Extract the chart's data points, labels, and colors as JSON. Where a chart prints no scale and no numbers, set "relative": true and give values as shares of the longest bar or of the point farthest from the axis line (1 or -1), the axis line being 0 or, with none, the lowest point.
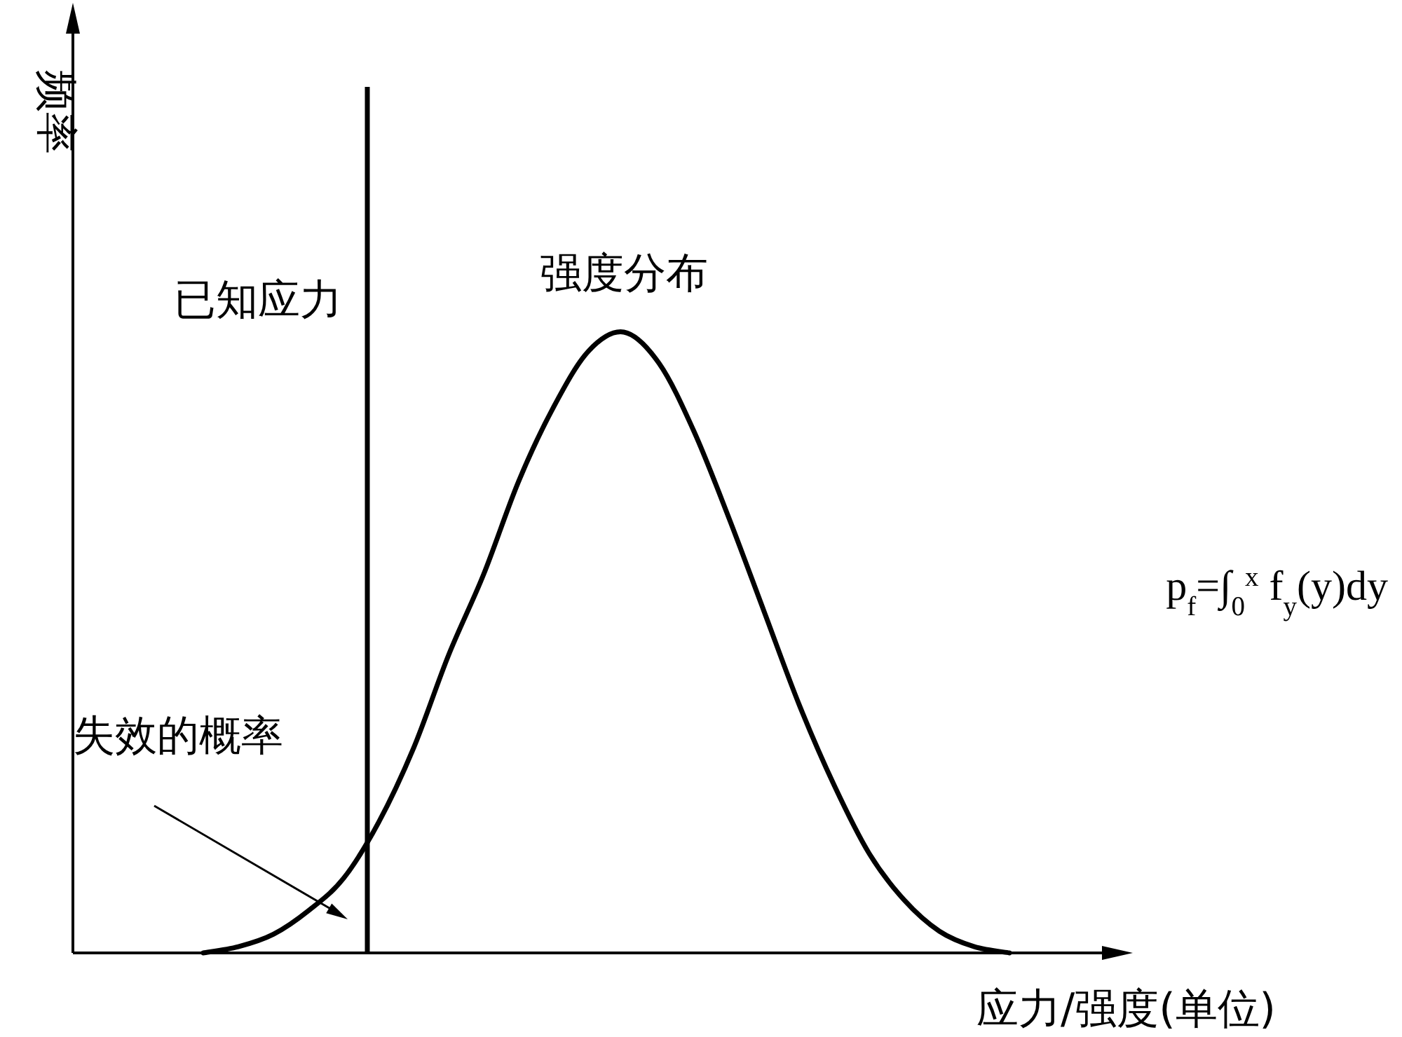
{
  "chart_data": {
    "type": "line",
    "relative": true,
    "color": "#000000",
    "categories": [
      null,
      null,
      null,
      null,
      null,
      null,
      null,
      null,
      null,
      null,
      null,
      null,
      null,
      null,
      null,
      null,
      null,
      null,
      null,
      null,
      null,
      null,
      null,
      null
    ],
    "values": [
      0,
      0.01,
      0.03,
      0.068,
      0.12,
      0.21,
      0.33,
      0.48,
      0.61,
      0.76,
      0.88,
      0.97,
      1,
      0.95,
      0.84,
      0.7,
      0.55,
      0.4,
      0.27,
      0.16,
      0.085,
      0.035,
      0.01,
      0
    ],
    "xlabel": "应力/强度(单位)",
    "ylabel": "频率",
    "ref_lines": [
      {
        "axis": "x",
        "label": "已知应力"
      }
    ],
    "annotations": [
      "强度分布",
      "失效的概率",
      "p$_{f}$=∫$_{0}$$^{x}$ f$_{y}$(y)dy"
    ]
  }
}
